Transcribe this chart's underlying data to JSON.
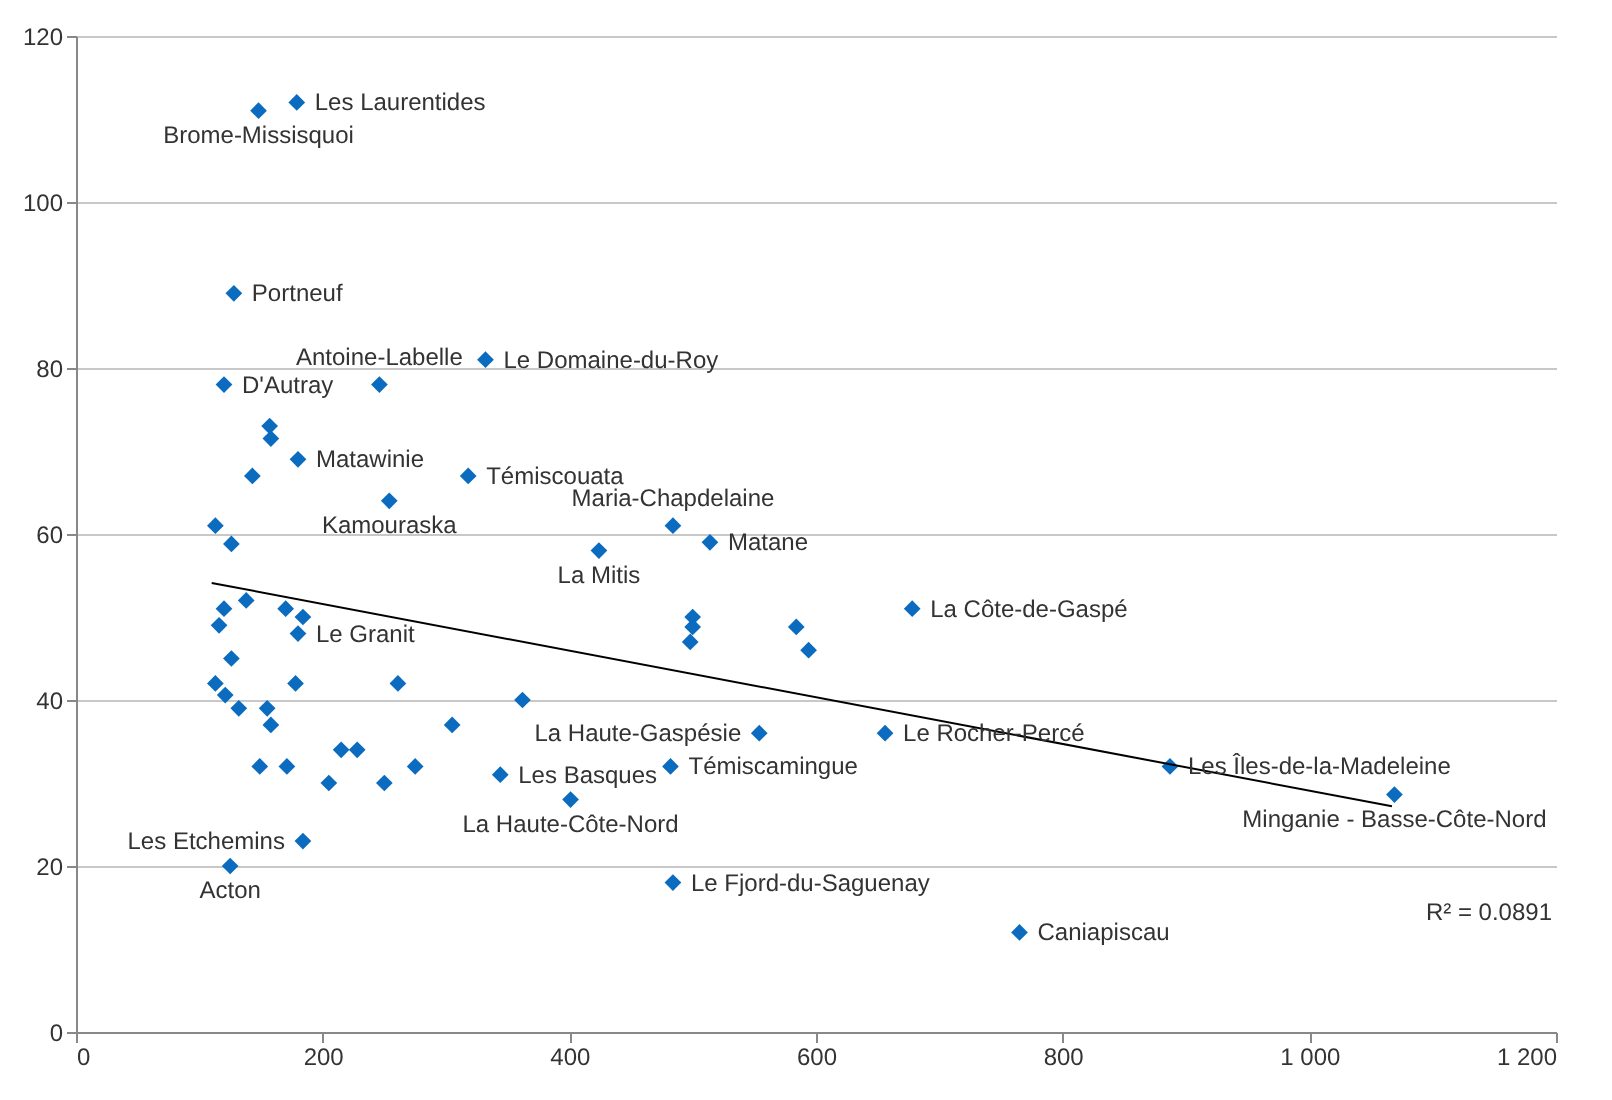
{
  "chart_data": {
    "type": "scatter",
    "xlim": [
      0,
      1200
    ],
    "ylim": [
      0,
      120
    ],
    "xticks": [
      0,
      200,
      400,
      600,
      800,
      {
        "value": 1000,
        "label": "1 000"
      },
      {
        "value": 1200,
        "label": "1 200"
      }
    ],
    "yticks": [
      0,
      20,
      40,
      60,
      80,
      100,
      120
    ],
    "grid": "y",
    "legend": false,
    "series": [
      {
        "type": "scatter",
        "marker": "diamond",
        "color": "#0b6cbf",
        "x": [
          179,
          148,
          128,
          332,
          120,
          246,
          180,
          318,
          254,
          484,
          514,
          424,
          678,
          180,
          554,
          656,
          482,
          344,
          401,
          484,
          887,
          1069,
          765,
          184,
          125,
          157,
          158,
          143,
          113,
          126,
          500,
          500,
          498,
          584,
          594,
          362,
          120,
          138,
          116,
          170,
          184,
          126,
          113,
          121,
          132,
          178,
          261,
          155,
          158,
          305,
          215,
          228,
          149,
          171,
          275,
          205,
          250
        ],
        "values": [
          112,
          111,
          89,
          81,
          78,
          78,
          69,
          67,
          64,
          61,
          59,
          58,
          51,
          48,
          36,
          36,
          32,
          31,
          28,
          18,
          32,
          28.6,
          12,
          23,
          20,
          73,
          71.5,
          67,
          61,
          58.8,
          50,
          48.8,
          47,
          48.8,
          46,
          40,
          51,
          52,
          49,
          51,
          50,
          45,
          42,
          40.6,
          39,
          42,
          42,
          39,
          37,
          37,
          34,
          34,
          32,
          32,
          32,
          30,
          30
        ]
      },
      {
        "type": "line",
        "color": "#000000",
        "line_style": "solid",
        "x": [
          110,
          1067
        ],
        "values": [
          54.1,
          27.2
        ]
      }
    ],
    "annotations": [
      {
        "text": "Les Laurentides",
        "x": 179,
        "y": 112
      },
      {
        "text": "Brome-Missisquoi",
        "x": 148,
        "y": 111
      },
      {
        "text": "Portneuf",
        "x": 128,
        "y": 89
      },
      {
        "text": "Le Domaine-du-Roy",
        "x": 332,
        "y": 81
      },
      {
        "text": "D'Autray",
        "x": 120,
        "y": 78
      },
      {
        "text": "Antoine-Labelle",
        "x": 246,
        "y": 78
      },
      {
        "text": "Matawinie",
        "x": 180,
        "y": 69
      },
      {
        "text": "Témiscouata",
        "x": 318,
        "y": 67
      },
      {
        "text": "Kamouraska",
        "x": 254,
        "y": 64
      },
      {
        "text": "Maria-Chapdelaine",
        "x": 484,
        "y": 61
      },
      {
        "text": "Matane",
        "x": 514,
        "y": 59
      },
      {
        "text": "La Mitis",
        "x": 424,
        "y": 58
      },
      {
        "text": "La Côte-de-Gaspé",
        "x": 678,
        "y": 51
      },
      {
        "text": "Le Granit",
        "x": 180,
        "y": 48
      },
      {
        "text": "La Haute-Gaspésie",
        "x": 554,
        "y": 36
      },
      {
        "text": "Le Rocher-Percé",
        "x": 656,
        "y": 36
      },
      {
        "text": "Témiscamingue",
        "x": 482,
        "y": 32
      },
      {
        "text": "Les Basques",
        "x": 344,
        "y": 31
      },
      {
        "text": "La Haute-Côte-Nord",
        "x": 401,
        "y": 28
      },
      {
        "text": "Le Fjord-du-Saguenay",
        "x": 484,
        "y": 18
      },
      {
        "text": "Les Îles-de-la-Madeleine",
        "x": 887,
        "y": 32
      },
      {
        "text": "Minganie - Basse-Côte-Nord",
        "x": 1069,
        "y": 28.6
      },
      {
        "text": "Caniapiscau",
        "x": 765,
        "y": 12
      },
      {
        "text": "Les Etchemins",
        "x": 184,
        "y": 23
      },
      {
        "text": "Acton",
        "x": 125,
        "y": 20
      },
      "R² = 0.0891"
    ]
  }
}
